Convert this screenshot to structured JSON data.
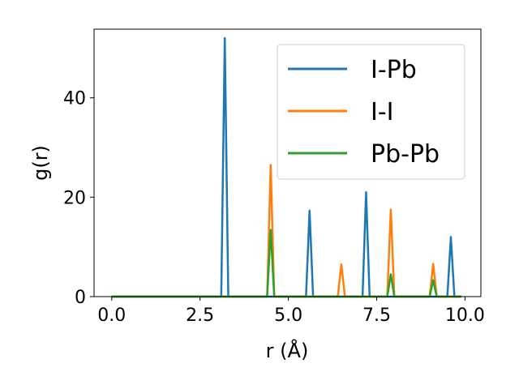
{
  "chart_data": {
    "type": "line",
    "xlabel": "r (Å)",
    "ylabel": "g(r)",
    "xlim": [
      -0.5,
      10.45
    ],
    "ylim": [
      0,
      53.8
    ],
    "xticks": [
      0.0,
      2.5,
      5.0,
      7.5,
      10.0
    ],
    "xtick_labels": [
      "0.0",
      "2.5",
      "5.0",
      "7.5",
      "10.0"
    ],
    "yticks": [
      0,
      20,
      40
    ],
    "ytick_labels": [
      "0",
      "20",
      "40"
    ],
    "grid": false,
    "legend_position": "upper right",
    "series": [
      {
        "name": "I-Pb",
        "color": "#1f77b4",
        "x": [
          0,
          3.1,
          3.2,
          3.3,
          5.5,
          5.6,
          5.7,
          7.1,
          7.2,
          7.3,
          9.5,
          9.6,
          9.7,
          9.9
        ],
        "y": [
          0,
          0,
          52,
          0,
          0,
          17.3,
          0,
          0,
          21,
          0,
          0,
          12,
          0,
          0
        ]
      },
      {
        "name": "I-I",
        "color": "#ff7f0e",
        "x": [
          0,
          4.4,
          4.5,
          4.6,
          6.4,
          6.5,
          6.6,
          7.8,
          7.9,
          8.0,
          9.0,
          9.1,
          9.2,
          9.9
        ],
        "y": [
          0,
          0,
          26.5,
          0,
          0,
          6.5,
          0,
          0,
          17.5,
          0,
          0,
          6.6,
          0,
          0
        ]
      },
      {
        "name": "Pb-Pb",
        "color": "#2ca02c",
        "x": [
          0,
          4.4,
          4.5,
          4.6,
          7.8,
          7.9,
          8.0,
          9.0,
          9.1,
          9.2,
          9.9
        ],
        "y": [
          0,
          0,
          13.4,
          0,
          0,
          4.5,
          0,
          0,
          3.3,
          0,
          0
        ]
      }
    ]
  }
}
